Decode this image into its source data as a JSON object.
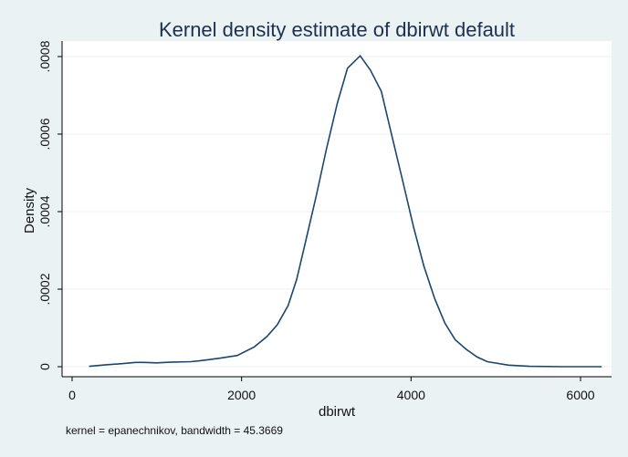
{
  "chart_data": {
    "type": "line",
    "title": "Kernel density estimate of dbirwt default",
    "xlabel": "dbirwt",
    "ylabel": "Density",
    "note": "kernel = epanechnikov, bandwidth = 45.3669",
    "xlim": [
      0,
      6300
    ],
    "ylim": [
      0,
      0.0008
    ],
    "x_ticks": [
      0,
      2000,
      4000,
      6000
    ],
    "x_tick_labels": [
      "0",
      "2000",
      "4000",
      "6000"
    ],
    "y_ticks": [
      0,
      0.0002,
      0.0004,
      0.0006,
      0.0008
    ],
    "y_tick_labels": [
      "0",
      ".0002",
      ".0004",
      ".0006",
      ".0008"
    ],
    "grid": true,
    "colors": {
      "background": "#eaf2f3",
      "plot_area": "#ffffff",
      "line": "#1a476f",
      "grid": "#eaf2f3",
      "title": "#1f2f4f"
    },
    "series": [
      {
        "x": [
          200,
          400,
          600,
          750,
          850,
          1000,
          1100,
          1200,
          1400,
          1500,
          1600,
          1750,
          1950,
          2150,
          2300,
          2420,
          2550,
          2650,
          2750,
          2880,
          3000,
          3130,
          3250,
          3400,
          3520,
          3650,
          3780,
          3900,
          4030,
          4150,
          4280,
          4400,
          4520,
          4650,
          4780,
          4900,
          5150,
          5400,
          5800,
          6250
        ],
        "y": [
          1e-06,
          5e-06,
          8e-06,
          1.1e-05,
          1.1e-05,
          1e-05,
          1.1e-05,
          1.2e-05,
          1.3e-05,
          1.5e-05,
          1.8e-05,
          2.2e-05,
          2.9e-05,
          5.1e-05,
          7.8e-05,
          0.000108,
          0.000158,
          0.000225,
          0.000318,
          0.00044,
          0.00056,
          0.00068,
          0.00077,
          0.000802,
          0.000765,
          0.00071,
          0.00059,
          0.00048,
          0.00036,
          0.00026,
          0.000175,
          0.000112,
          7e-05,
          4.5e-05,
          2.5e-05,
          1.3e-05,
          4e-06,
          1e-06,
          0.0,
          0.0
        ]
      }
    ]
  }
}
